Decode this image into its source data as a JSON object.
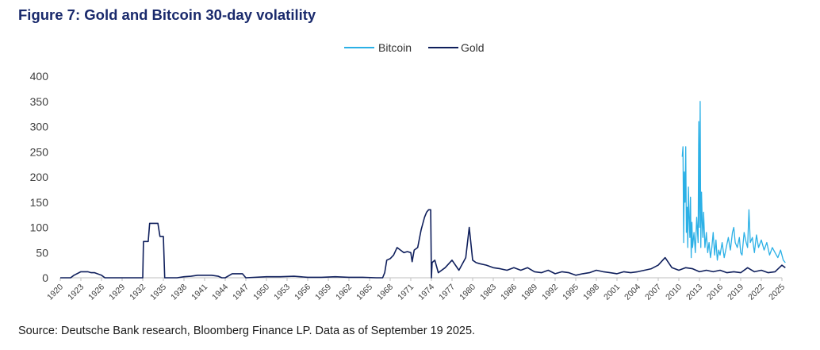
{
  "title": "Figure 7: Gold and Bitcoin 30-day volatility",
  "source": "Source: Deutsche Bank research, Bloomberg Finance LP. Data as of September 19 2025.",
  "colors": {
    "bitcoin": "#2bb0e6",
    "gold": "#0f1f5c",
    "title": "#1a2a6c"
  },
  "chart_data": {
    "type": "line",
    "title": "Figure 7: Gold and Bitcoin 30-day volatility",
    "xlabel": "",
    "ylabel": "",
    "xlim": [
      1920,
      2025
    ],
    "ylim": [
      0,
      400
    ],
    "yticks": [
      0,
      50,
      100,
      150,
      200,
      250,
      300,
      350,
      400
    ],
    "xticks": [
      "1920",
      "1923",
      "1926",
      "1929",
      "1932",
      "1935",
      "1938",
      "1941",
      "1944",
      "1947",
      "1950",
      "1953",
      "1956",
      "1959",
      "1962",
      "1965",
      "1968",
      "1971",
      "1974",
      "1977",
      "1980",
      "1983",
      "1986",
      "1989",
      "1992",
      "1995",
      "1998",
      "2001",
      "2004",
      "2007",
      "2010",
      "2013",
      "2016",
      "2019",
      "2022",
      "2025"
    ],
    "legend_position": "top-center",
    "grid": false,
    "series": [
      {
        "name": "Bitcoin",
        "color": "#2bb0e6",
        "x": [
          2010.5,
          2010.6,
          2010.7,
          2010.8,
          2010.9,
          2011.0,
          2011.1,
          2011.2,
          2011.3,
          2011.4,
          2011.5,
          2011.6,
          2011.7,
          2011.8,
          2011.9,
          2012.0,
          2012.2,
          2012.4,
          2012.6,
          2012.8,
          2012.9,
          2013.0,
          2013.1,
          2013.2,
          2013.3,
          2013.4,
          2013.5,
          2013.6,
          2013.8,
          2014.0,
          2014.2,
          2014.4,
          2014.6,
          2014.8,
          2015.0,
          2015.2,
          2015.4,
          2015.6,
          2015.8,
          2016.0,
          2016.3,
          2016.6,
          2016.9,
          2017.2,
          2017.5,
          2017.8,
          2018.0,
          2018.2,
          2018.5,
          2018.8,
          2019.0,
          2019.2,
          2019.5,
          2019.8,
          2020.0,
          2020.2,
          2020.4,
          2020.7,
          2021.0,
          2021.3,
          2021.6,
          2022.0,
          2022.4,
          2022.8,
          2023.2,
          2023.6,
          2024.0,
          2024.4,
          2024.8,
          2025.2,
          2025.5
        ],
        "values": [
          240,
          260,
          70,
          210,
          150,
          260,
          90,
          140,
          60,
          180,
          120,
          80,
          160,
          40,
          110,
          60,
          90,
          50,
          120,
          70,
          310,
          100,
          350,
          60,
          170,
          110,
          80,
          130,
          60,
          90,
          50,
          70,
          40,
          60,
          90,
          45,
          75,
          35,
          55,
          45,
          70,
          40,
          60,
          80,
          55,
          90,
          100,
          70,
          60,
          80,
          50,
          45,
          90,
          70,
          60,
          135,
          70,
          80,
          50,
          85,
          60,
          75,
          55,
          70,
          45,
          60,
          50,
          40,
          55,
          35,
          30
        ]
      },
      {
        "name": "Gold",
        "color": "#0f1f5c",
        "x": [
          1920,
          1921.5,
          1922,
          1923,
          1924,
          1924.5,
          1925,
          1926,
          1926.5,
          1927,
          1932,
          1932.1,
          1932.8,
          1933,
          1934.2,
          1934.5,
          1935.0,
          1935.2,
          1936,
          1937,
          1938,
          1939,
          1940,
          1941,
          1942,
          1943,
          1943.5,
          1944,
          1945,
          1946,
          1946.5,
          1947,
          1950,
          1952,
          1954,
          1956,
          1958,
          1960,
          1962,
          1964,
          1966,
          1966.9,
          1967.2,
          1967.5,
          1968,
          1968.5,
          1969,
          1969.5,
          1970,
          1970.5,
          1971,
          1971.2,
          1971.5,
          1972,
          1972.5,
          1973,
          1973.3,
          1973.6,
          1973.9,
          1974.0,
          1974.1,
          1974.5,
          1975,
          1976,
          1977,
          1978,
          1979,
          1979.5,
          1980,
          1980.5,
          1981,
          1982,
          1983,
          1984,
          1985,
          1986,
          1987,
          1988,
          1989,
          1990,
          1991,
          1992,
          1993,
          1994,
          1995,
          1996,
          1997,
          1998,
          1999,
          2000,
          2001,
          2002,
          2003,
          2004,
          2005,
          2006,
          2007,
          2008,
          2009,
          2010,
          2011,
          2012,
          2013,
          2014,
          2015,
          2016,
          2017,
          2018,
          2019,
          2020,
          2021,
          2022,
          2023,
          2024,
          2025,
          2025.5
        ],
        "values": [
          0,
          0,
          5,
          12,
          12,
          10,
          10,
          5,
          0,
          0,
          0,
          72,
          72,
          108,
          108,
          82,
          82,
          0,
          0,
          0,
          2,
          3,
          5,
          5,
          5,
          3,
          0,
          0,
          8,
          8,
          8,
          0,
          2,
          2,
          3,
          1,
          1,
          2,
          1,
          1,
          0,
          0,
          10,
          35,
          38,
          45,
          60,
          55,
          50,
          52,
          50,
          32,
          55,
          60,
          95,
          120,
          130,
          135,
          135,
          0,
          30,
          35,
          10,
          20,
          35,
          15,
          40,
          100,
          35,
          30,
          28,
          25,
          20,
          18,
          15,
          20,
          15,
          20,
          12,
          10,
          15,
          8,
          12,
          10,
          5,
          8,
          10,
          15,
          12,
          10,
          8,
          12,
          10,
          12,
          15,
          18,
          25,
          40,
          20,
          15,
          20,
          18,
          12,
          15,
          12,
          15,
          10,
          12,
          10,
          20,
          12,
          15,
          10,
          12,
          25,
          20
        ]
      }
    ]
  }
}
